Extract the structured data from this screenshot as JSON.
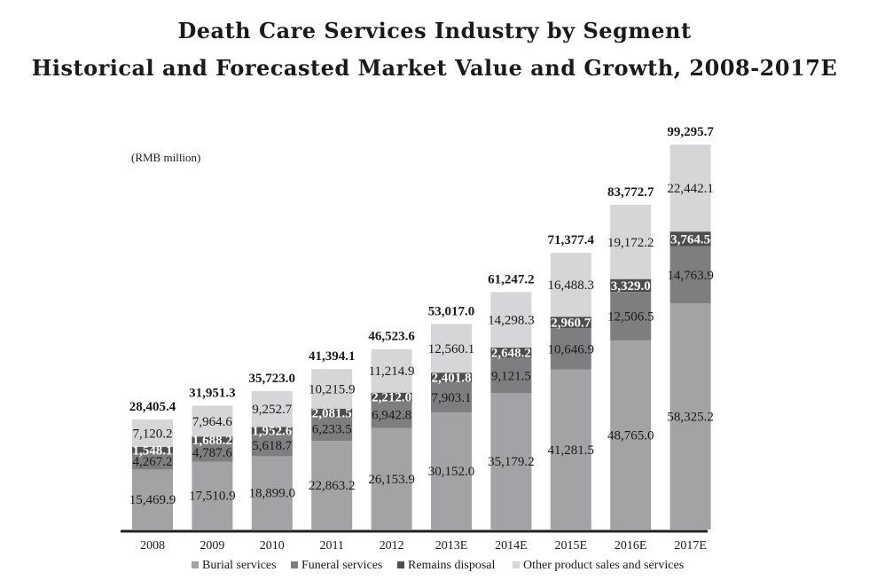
{
  "header": {
    "title_line1": "Death Care Services Industry by Segment",
    "title_line2": "Historical and Forecasted Market Value and Growth, 2008-2017E"
  },
  "chart_data": {
    "type": "bar",
    "stacked": true,
    "unit_label": "(RMB million)",
    "categories": [
      "2008",
      "2009",
      "2010",
      "2011",
      "2012",
      "2013E",
      "2014E",
      "2015E",
      "2016E",
      "2017E"
    ],
    "series": [
      {
        "name": "Burial services",
        "color": "#a3a3a5",
        "values": [
          15469.9,
          17510.9,
          18899.0,
          22863.2,
          26153.9,
          30152.0,
          35179.2,
          41281.5,
          48765.0,
          58325.2
        ],
        "labels": [
          "15,469.9",
          "17,510.9",
          "18,899.0",
          "22,863.2",
          "26,153.9",
          "30,152.0",
          "35,179.2",
          "41,281.5",
          "48,765.0",
          "58,325.2"
        ]
      },
      {
        "name": "Funeral services",
        "color": "#7e7e80",
        "values": [
          4267.2,
          4787.6,
          5618.7,
          6233.5,
          6942.8,
          7903.1,
          9121.5,
          10646.9,
          12506.5,
          14763.9
        ],
        "labels": [
          "4,267.2",
          "4,787.6",
          "5,618.7",
          "6,233.5",
          "6,942.8",
          "7,903.1",
          "9,121.5",
          "10,646.9",
          "12,506.5",
          "14,763.9"
        ]
      },
      {
        "name": "Remains disposal",
        "color": "#4e4e50",
        "values": [
          1548.1,
          1688.2,
          1952.6,
          2081.5,
          2212.0,
          2401.8,
          2648.2,
          2960.7,
          3329.0,
          3764.5
        ],
        "labels": [
          "1,548.1",
          "1,688.2",
          "1,952.6",
          "2,081.5",
          "2,212.0",
          "2,401.8",
          "2,648.2",
          "2,960.7",
          "3,329.0",
          "3,764.5"
        ]
      },
      {
        "name": "Other product sales and services",
        "color": "#d6d6d8",
        "values": [
          7120.2,
          7964.6,
          9252.7,
          10215.9,
          11214.9,
          12560.1,
          14298.3,
          16488.3,
          19172.2,
          22442.1
        ],
        "labels": [
          "7,120.2",
          "7,964.6",
          "9,252.7",
          "10,215.9",
          "11,214.9",
          "12,560.1",
          "14,298.3",
          "16,488.3",
          "19,172.2",
          "22,442.1"
        ]
      }
    ],
    "totals": [
      28405.4,
      31951.3,
      35723.0,
      41394.1,
      46523.6,
      53017.0,
      61247.2,
      71377.4,
      83772.7,
      99295.7
    ],
    "total_labels": [
      "28,405.4",
      "31,951.3",
      "35,723.0",
      "41,394.1",
      "46,523.6",
      "53,017.0",
      "61,247.2",
      "71,377.4",
      "83,772.7",
      "99,295.7"
    ],
    "ylim": [
      0,
      100000
    ],
    "grid": false,
    "legend_position": "bottom"
  }
}
